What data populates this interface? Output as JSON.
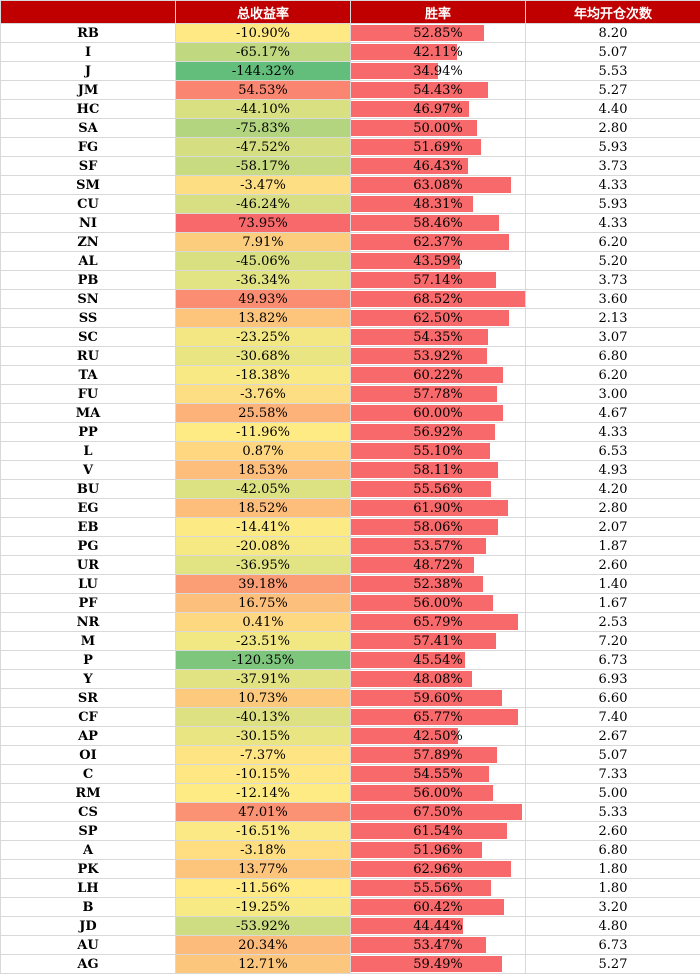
{
  "headers": [
    "",
    "总收益率",
    "胜率",
    "年均开仓次数"
  ],
  "colors": {
    "header_bg": "#c00000",
    "bar": "#f8696b",
    "scale_low": "#63be7b",
    "scale_mid": "#ffeb84",
    "scale_high": "#f8696b"
  },
  "rows": [
    {
      "symbol": "RB",
      "return": "-10.90%",
      "return_value": -10.9,
      "win_rate": "52.85%",
      "win_value": 52.85,
      "trades": "8.20"
    },
    {
      "symbol": "I",
      "return": "-65.17%",
      "return_value": -65.17,
      "win_rate": "42.11%",
      "win_value": 42.11,
      "trades": "5.07"
    },
    {
      "symbol": "J",
      "return": "-144.32%",
      "return_value": -144.32,
      "win_rate": "34.94%",
      "win_value": 34.94,
      "trades": "5.53"
    },
    {
      "symbol": "JM",
      "return": "54.53%",
      "return_value": 54.53,
      "win_rate": "54.43%",
      "win_value": 54.43,
      "trades": "5.27"
    },
    {
      "symbol": "HC",
      "return": "-44.10%",
      "return_value": -44.1,
      "win_rate": "46.97%",
      "win_value": 46.97,
      "trades": "4.40"
    },
    {
      "symbol": "SA",
      "return": "-75.83%",
      "return_value": -75.83,
      "win_rate": "50.00%",
      "win_value": 50.0,
      "trades": "2.80"
    },
    {
      "symbol": "FG",
      "return": "-47.52%",
      "return_value": -47.52,
      "win_rate": "51.69%",
      "win_value": 51.69,
      "trades": "5.93"
    },
    {
      "symbol": "SF",
      "return": "-58.17%",
      "return_value": -58.17,
      "win_rate": "46.43%",
      "win_value": 46.43,
      "trades": "3.73"
    },
    {
      "symbol": "SM",
      "return": "-3.47%",
      "return_value": -3.47,
      "win_rate": "63.08%",
      "win_value": 63.08,
      "trades": "4.33"
    },
    {
      "symbol": "CU",
      "return": "-46.24%",
      "return_value": -46.24,
      "win_rate": "48.31%",
      "win_value": 48.31,
      "trades": "5.93"
    },
    {
      "symbol": "NI",
      "return": "73.95%",
      "return_value": 73.95,
      "win_rate": "58.46%",
      "win_value": 58.46,
      "trades": "4.33"
    },
    {
      "symbol": "ZN",
      "return": "7.91%",
      "return_value": 7.91,
      "win_rate": "62.37%",
      "win_value": 62.37,
      "trades": "6.20"
    },
    {
      "symbol": "AL",
      "return": "-45.06%",
      "return_value": -45.06,
      "win_rate": "43.59%",
      "win_value": 43.59,
      "trades": "5.20"
    },
    {
      "symbol": "PB",
      "return": "-36.34%",
      "return_value": -36.34,
      "win_rate": "57.14%",
      "win_value": 57.14,
      "trades": "3.73"
    },
    {
      "symbol": "SN",
      "return": "49.93%",
      "return_value": 49.93,
      "win_rate": "68.52%",
      "win_value": 68.52,
      "trades": "3.60"
    },
    {
      "symbol": "SS",
      "return": "13.82%",
      "return_value": 13.82,
      "win_rate": "62.50%",
      "win_value": 62.5,
      "trades": "2.13"
    },
    {
      "symbol": "SC",
      "return": "-23.25%",
      "return_value": -23.25,
      "win_rate": "54.35%",
      "win_value": 54.35,
      "trades": "3.07"
    },
    {
      "symbol": "RU",
      "return": "-30.68%",
      "return_value": -30.68,
      "win_rate": "53.92%",
      "win_value": 53.92,
      "trades": "6.80"
    },
    {
      "symbol": "TA",
      "return": "-18.38%",
      "return_value": -18.38,
      "win_rate": "60.22%",
      "win_value": 60.22,
      "trades": "6.20"
    },
    {
      "symbol": "FU",
      "return": "-3.76%",
      "return_value": -3.76,
      "win_rate": "57.78%",
      "win_value": 57.78,
      "trades": "3.00"
    },
    {
      "symbol": "MA",
      "return": "25.58%",
      "return_value": 25.58,
      "win_rate": "60.00%",
      "win_value": 60.0,
      "trades": "4.67"
    },
    {
      "symbol": "PP",
      "return": "-11.96%",
      "return_value": -11.96,
      "win_rate": "56.92%",
      "win_value": 56.92,
      "trades": "4.33"
    },
    {
      "symbol": "L",
      "return": "0.87%",
      "return_value": 0.87,
      "win_rate": "55.10%",
      "win_value": 55.1,
      "trades": "6.53"
    },
    {
      "symbol": "V",
      "return": "18.53%",
      "return_value": 18.53,
      "win_rate": "58.11%",
      "win_value": 58.11,
      "trades": "4.93"
    },
    {
      "symbol": "BU",
      "return": "-42.05%",
      "return_value": -42.05,
      "win_rate": "55.56%",
      "win_value": 55.56,
      "trades": "4.20"
    },
    {
      "symbol": "EG",
      "return": "18.52%",
      "return_value": 18.52,
      "win_rate": "61.90%",
      "win_value": 61.9,
      "trades": "2.80"
    },
    {
      "symbol": "EB",
      "return": "-14.41%",
      "return_value": -14.41,
      "win_rate": "58.06%",
      "win_value": 58.06,
      "trades": "2.07"
    },
    {
      "symbol": "PG",
      "return": "-20.08%",
      "return_value": -20.08,
      "win_rate": "53.57%",
      "win_value": 53.57,
      "trades": "1.87"
    },
    {
      "symbol": "UR",
      "return": "-36.95%",
      "return_value": -36.95,
      "win_rate": "48.72%",
      "win_value": 48.72,
      "trades": "2.60"
    },
    {
      "symbol": "LU",
      "return": "39.18%",
      "return_value": 39.18,
      "win_rate": "52.38%",
      "win_value": 52.38,
      "trades": "1.40"
    },
    {
      "symbol": "PF",
      "return": "16.75%",
      "return_value": 16.75,
      "win_rate": "56.00%",
      "win_value": 56.0,
      "trades": "1.67"
    },
    {
      "symbol": "NR",
      "return": "0.41%",
      "return_value": 0.41,
      "win_rate": "65.79%",
      "win_value": 65.79,
      "trades": "2.53"
    },
    {
      "symbol": "M",
      "return": "-23.51%",
      "return_value": -23.51,
      "win_rate": "57.41%",
      "win_value": 57.41,
      "trades": "7.20"
    },
    {
      "symbol": "P",
      "return": "-120.35%",
      "return_value": -120.35,
      "win_rate": "45.54%",
      "win_value": 45.54,
      "trades": "6.73"
    },
    {
      "symbol": "Y",
      "return": "-37.91%",
      "return_value": -37.91,
      "win_rate": "48.08%",
      "win_value": 48.08,
      "trades": "6.93"
    },
    {
      "symbol": "SR",
      "return": "10.73%",
      "return_value": 10.73,
      "win_rate": "59.60%",
      "win_value": 59.6,
      "trades": "6.60"
    },
    {
      "symbol": "CF",
      "return": "-40.13%",
      "return_value": -40.13,
      "win_rate": "65.77%",
      "win_value": 65.77,
      "trades": "7.40"
    },
    {
      "symbol": "AP",
      "return": "-30.15%",
      "return_value": -30.15,
      "win_rate": "42.50%",
      "win_value": 42.5,
      "trades": "2.67"
    },
    {
      "symbol": "OI",
      "return": "-7.37%",
      "return_value": -7.37,
      "win_rate": "57.89%",
      "win_value": 57.89,
      "trades": "5.07"
    },
    {
      "symbol": "C",
      "return": "-10.15%",
      "return_value": -10.15,
      "win_rate": "54.55%",
      "win_value": 54.55,
      "trades": "7.33"
    },
    {
      "symbol": "RM",
      "return": "-12.14%",
      "return_value": -12.14,
      "win_rate": "56.00%",
      "win_value": 56.0,
      "trades": "5.00"
    },
    {
      "symbol": "CS",
      "return": "47.01%",
      "return_value": 47.01,
      "win_rate": "67.50%",
      "win_value": 67.5,
      "trades": "5.33"
    },
    {
      "symbol": "SP",
      "return": "-16.51%",
      "return_value": -16.51,
      "win_rate": "61.54%",
      "win_value": 61.54,
      "trades": "2.60"
    },
    {
      "symbol": "A",
      "return": "-3.18%",
      "return_value": -3.18,
      "win_rate": "51.96%",
      "win_value": 51.96,
      "trades": "6.80"
    },
    {
      "symbol": "PK",
      "return": "13.77%",
      "return_value": 13.77,
      "win_rate": "62.96%",
      "win_value": 62.96,
      "trades": "1.80"
    },
    {
      "symbol": "LH",
      "return": "-11.56%",
      "return_value": -11.56,
      "win_rate": "55.56%",
      "win_value": 55.56,
      "trades": "1.80"
    },
    {
      "symbol": "B",
      "return": "-19.25%",
      "return_value": -19.25,
      "win_rate": "60.42%",
      "win_value": 60.42,
      "trades": "3.20"
    },
    {
      "symbol": "JD",
      "return": "-53.92%",
      "return_value": -53.92,
      "win_rate": "44.44%",
      "win_value": 44.44,
      "trades": "4.80"
    },
    {
      "symbol": "AU",
      "return": "20.34%",
      "return_value": 20.34,
      "win_rate": "53.47%",
      "win_value": 53.47,
      "trades": "6.73"
    },
    {
      "symbol": "AG",
      "return": "12.71%",
      "return_value": 12.71,
      "win_rate": "59.49%",
      "win_value": 59.49,
      "trades": "5.27"
    }
  ]
}
